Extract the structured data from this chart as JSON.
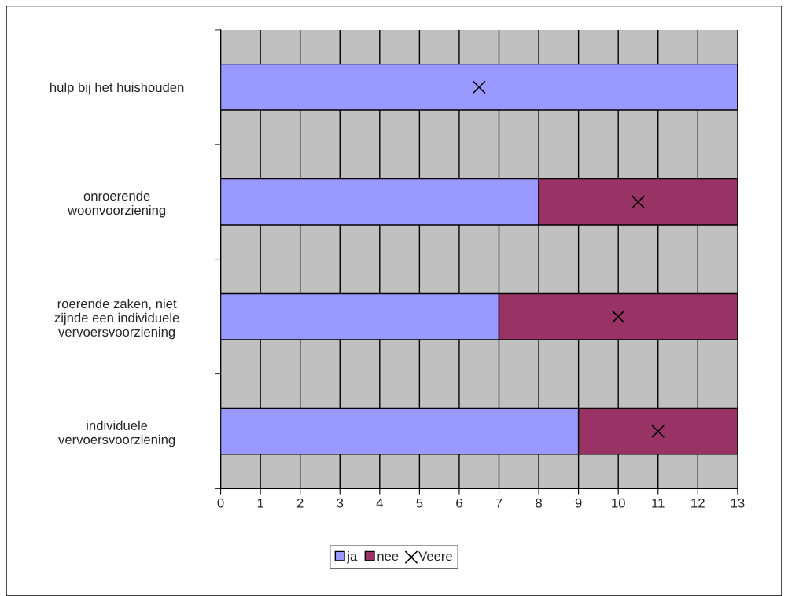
{
  "chart_data": {
    "type": "bar",
    "orientation": "horizontal",
    "stacked": true,
    "categories": [
      "hulp bij het huishouden",
      "onroerende\nwoonvoorziening",
      "roerende zaken, niet\nzijnde een individuele\nvervoersvoorziening",
      "individuele\nvervoersvoorziening"
    ],
    "series": [
      {
        "name": "ja",
        "color": "#9999ff",
        "values": [
          13,
          8,
          7,
          9
        ]
      },
      {
        "name": "nee",
        "color": "#993366",
        "values": [
          0,
          5,
          6,
          4
        ]
      },
      {
        "name": "Veere",
        "type": "scatter",
        "marker": "cross",
        "color": "#000000",
        "values": [
          6.5,
          10.5,
          10,
          11
        ]
      }
    ],
    "xlim": [
      0,
      13
    ],
    "xticks": [
      0,
      1,
      2,
      3,
      4,
      5,
      6,
      7,
      8,
      9,
      10,
      11,
      12,
      13
    ],
    "grid": "x",
    "legend": "bottom"
  }
}
